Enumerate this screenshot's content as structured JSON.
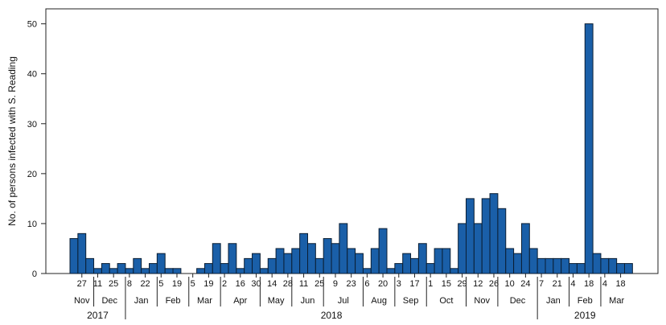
{
  "chart_data": {
    "type": "bar",
    "title": "",
    "ylabel": "No. of persons infected with S. Reading",
    "xlabel": "",
    "ylim": [
      0,
      53
    ],
    "yticks": [
      0,
      10,
      20,
      30,
      40,
      50
    ],
    "grid": false,
    "bar_color": "#1a5fa8",
    "edge_color": "#0b1e33",
    "values": [
      7,
      8,
      3,
      1,
      2,
      1,
      2,
      1,
      3,
      1,
      2,
      4,
      1,
      1,
      0,
      0,
      1,
      2,
      6,
      2,
      6,
      1,
      3,
      4,
      1,
      3,
      5,
      4,
      5,
      8,
      6,
      3,
      7,
      6,
      10,
      5,
      4,
      1,
      5,
      9,
      1,
      2,
      4,
      3,
      6,
      2,
      5,
      5,
      1,
      10,
      15,
      10,
      15,
      16,
      13,
      5,
      4,
      10,
      5,
      3,
      3,
      3,
      3,
      2,
      2,
      50,
      4,
      3,
      3,
      2,
      2
    ],
    "week_ticks": [
      {
        "bar": 1,
        "label": "27"
      },
      {
        "bar": 3,
        "label": "11"
      },
      {
        "bar": 5,
        "label": "25"
      },
      {
        "bar": 7,
        "label": "8"
      },
      {
        "bar": 9,
        "label": "22"
      },
      {
        "bar": 11,
        "label": "5"
      },
      {
        "bar": 13,
        "label": "19"
      },
      {
        "bar": 15,
        "label": "5"
      },
      {
        "bar": 17,
        "label": "19"
      },
      {
        "bar": 19,
        "label": "2"
      },
      {
        "bar": 21,
        "label": "16"
      },
      {
        "bar": 23,
        "label": "30"
      },
      {
        "bar": 25,
        "label": "14"
      },
      {
        "bar": 27,
        "label": "28"
      },
      {
        "bar": 29,
        "label": "11"
      },
      {
        "bar": 31,
        "label": "25"
      },
      {
        "bar": 33,
        "label": "9"
      },
      {
        "bar": 35,
        "label": "23"
      },
      {
        "bar": 37,
        "label": "6"
      },
      {
        "bar": 39,
        "label": "20"
      },
      {
        "bar": 41,
        "label": "3"
      },
      {
        "bar": 43,
        "label": "17"
      },
      {
        "bar": 45,
        "label": "1"
      },
      {
        "bar": 47,
        "label": "15"
      },
      {
        "bar": 49,
        "label": "29"
      },
      {
        "bar": 51,
        "label": "12"
      },
      {
        "bar": 53,
        "label": "26"
      },
      {
        "bar": 55,
        "label": "10"
      },
      {
        "bar": 57,
        "label": "24"
      },
      {
        "bar": 59,
        "label": "7"
      },
      {
        "bar": 61,
        "label": "21"
      },
      {
        "bar": 63,
        "label": "4"
      },
      {
        "bar": 65,
        "label": "18"
      },
      {
        "bar": 67,
        "label": "4"
      },
      {
        "bar": 69,
        "label": "18"
      }
    ],
    "months": [
      {
        "label": "Nov",
        "start": 0,
        "end": 3
      },
      {
        "label": "Dec",
        "start": 3,
        "end": 7
      },
      {
        "label": "Jan",
        "start": 7,
        "end": 11
      },
      {
        "label": "Feb",
        "start": 11,
        "end": 15
      },
      {
        "label": "Mar",
        "start": 15,
        "end": 19
      },
      {
        "label": "Apr",
        "start": 19,
        "end": 24
      },
      {
        "label": "May",
        "start": 24,
        "end": 28
      },
      {
        "label": "Jun",
        "start": 28,
        "end": 32
      },
      {
        "label": "Jul",
        "start": 32,
        "end": 37
      },
      {
        "label": "Aug",
        "start": 37,
        "end": 41
      },
      {
        "label": "Sep",
        "start": 41,
        "end": 45
      },
      {
        "label": "Oct",
        "start": 45,
        "end": 50
      },
      {
        "label": "Nov",
        "start": 50,
        "end": 54
      },
      {
        "label": "Dec",
        "start": 54,
        "end": 59
      },
      {
        "label": "Jan",
        "start": 59,
        "end": 63
      },
      {
        "label": "Feb",
        "start": 63,
        "end": 67
      },
      {
        "label": "Mar",
        "start": 67,
        "end": 71
      }
    ],
    "years": [
      {
        "label": "2017",
        "start": 0,
        "end": 7
      },
      {
        "label": "2018",
        "start": 7,
        "end": 59
      },
      {
        "label": "2019",
        "start": 59,
        "end": 71
      }
    ]
  }
}
